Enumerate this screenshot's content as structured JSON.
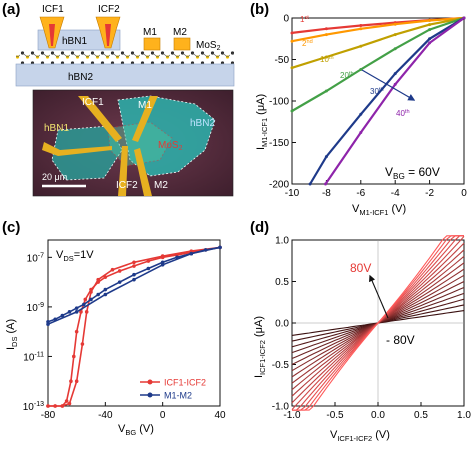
{
  "panels": {
    "a": {
      "label": "(a)",
      "schematic": {
        "contacts": [
          "ICF1",
          "ICF2",
          "M1",
          "M2"
        ],
        "layers": [
          "hBN1",
          "MoS",
          "hBN2"
        ],
        "mos_sub": "2"
      },
      "micrograph": {
        "labels": [
          "ICF1",
          "M1",
          "hBN1",
          "hBN2",
          "MoS",
          "ICF2",
          "M2"
        ],
        "mos_sub": "2",
        "scale_bar": "20 μm"
      }
    },
    "b": {
      "label": "(b)"
    },
    "c": {
      "label": "(c)"
    },
    "d": {
      "label": "(d)"
    }
  },
  "chart_data": [
    {
      "panel": "b",
      "type": "line",
      "xlabel": "V",
      "xlabel_sub": "M1-ICF1",
      "xlabel_unit": " (V)",
      "ylabel": "I",
      "ylabel_sub": "M1-ICF1",
      "ylabel_unit": " (μA)",
      "xlim": [
        -10,
        0
      ],
      "ylim": [
        -200,
        0
      ],
      "xticks": [
        -10,
        -8,
        -6,
        -4,
        -2,
        0
      ],
      "yticks": [
        0,
        -50,
        -100,
        -150,
        -200
      ],
      "annotation": {
        "main": "V",
        "sub": "BG",
        "rest": " = 60V"
      },
      "arrow_label": "40",
      "arrow_label_sup": "th",
      "series": [
        {
          "label": "1",
          "label_sup": "st",
          "color": "#e53935",
          "x": [
            -10,
            -8,
            -6,
            -4,
            -2,
            0
          ],
          "y": [
            -18,
            -13,
            -9,
            -5.5,
            -2.5,
            0
          ]
        },
        {
          "label": "2",
          "label_sup": "nd",
          "color": "#ff9800",
          "x": [
            -10,
            -8,
            -6,
            -4,
            -2,
            0
          ],
          "y": [
            -28,
            -20,
            -13,
            -7.5,
            -3,
            0
          ]
        },
        {
          "label": "10",
          "label_sup": "th",
          "color": "#c0a000",
          "x": [
            -10,
            -8,
            -6,
            -4,
            -2,
            0
          ],
          "y": [
            -60,
            -47,
            -34,
            -20,
            -8,
            0
          ]
        },
        {
          "label": "20",
          "label_sup": "th",
          "color": "#43a047",
          "x": [
            -10,
            -8,
            -6,
            -4,
            -2,
            0
          ],
          "y": [
            -112,
            -88,
            -62,
            -37,
            -14,
            0
          ]
        },
        {
          "label": "30",
          "label_sup": "th",
          "color": "#1e3a8a",
          "x": [
            -8.95,
            -8,
            -6,
            -4,
            -2,
            0
          ],
          "y": [
            -200,
            -167,
            -116,
            -67,
            -25,
            0
          ]
        },
        {
          "label": "",
          "label_sup": "",
          "color": "#8e24aa",
          "x": [
            -8.05,
            -6,
            -4,
            -2,
            0
          ],
          "y": [
            -200,
            -138,
            -80,
            -30,
            0
          ]
        }
      ]
    },
    {
      "panel": "c",
      "type": "line",
      "xlabel": "V",
      "xlabel_sub": "BG",
      "xlabel_unit": " (V)",
      "ylabel": "I",
      "ylabel_sub": "DS",
      "ylabel_unit": " (A)",
      "xlim": [
        -80,
        40
      ],
      "ylog": true,
      "ylim_exp": [
        -13,
        -6.3
      ],
      "xticks": [
        -80,
        -40,
        0,
        40
      ],
      "yticks_exp": [
        -13,
        -11,
        -9,
        -7
      ],
      "annotation": {
        "main": "V",
        "sub": "DS",
        "rest": "=1V"
      },
      "series": [
        {
          "name": "ICF1-ICF2",
          "color": "#e53935",
          "x": [
            -80,
            -75,
            -70,
            -67,
            -64,
            -62,
            -60,
            -57,
            -54,
            -50,
            -45,
            -40,
            -30,
            -20,
            -10,
            0,
            10,
            20,
            30,
            40
          ],
          "y_exp": [
            -13,
            -13,
            -13,
            -12.8,
            -12,
            -11,
            -10,
            -9.2,
            -8.7,
            -8.3,
            -8.0,
            -7.8,
            -7.55,
            -7.35,
            -7.15,
            -7.0,
            -6.9,
            -6.8,
            -6.7,
            -6.6
          ],
          "x_rev": [
            40,
            20,
            0,
            -20,
            -35,
            -45,
            -50,
            -53,
            -56,
            -60,
            -65,
            -70,
            -75,
            -80
          ],
          "y_rev_exp": [
            -6.6,
            -6.75,
            -6.95,
            -7.2,
            -7.5,
            -7.9,
            -8.4,
            -9.2,
            -10.5,
            -12,
            -12.9,
            -13,
            -13,
            -13
          ]
        },
        {
          "name": "M1-M2",
          "color": "#1e3a8a",
          "x": [
            -80,
            -75,
            -70,
            -65,
            -60,
            -55,
            -50,
            -45,
            -40,
            -30,
            -20,
            -10,
            0,
            10,
            20,
            30,
            40
          ],
          "y_exp": [
            -9.6,
            -9.5,
            -9.35,
            -9.2,
            -9.05,
            -8.9,
            -8.7,
            -8.5,
            -8.3,
            -8.0,
            -7.7,
            -7.45,
            -7.2,
            -7.0,
            -6.85,
            -6.7,
            -6.6
          ],
          "x_rev": [
            40,
            20,
            0,
            -20,
            -40,
            -60,
            -80
          ],
          "y_rev_exp": [
            -6.6,
            -6.85,
            -7.3,
            -7.9,
            -8.5,
            -9.2,
            -9.7
          ]
        }
      ]
    },
    {
      "panel": "d",
      "type": "line",
      "xlabel": "V",
      "xlabel_sub": "ICF1-ICF2",
      "xlabel_unit": " (V)",
      "ylabel": "I",
      "ylabel_sub": "ICF1-ICF2",
      "ylabel_unit": " (μA)",
      "xlim": [
        -1,
        1
      ],
      "ylim": [
        -1,
        1
      ],
      "xticks": [
        -1.0,
        -0.5,
        0.0,
        0.5,
        1.0
      ],
      "yticks": [
        1.0,
        0.5,
        0.0,
        -0.5,
        -1.0
      ],
      "gate_labels": {
        "top": "80V",
        "bottom": "- 80V"
      },
      "family": {
        "vbg_from": -80,
        "vbg_to": 80,
        "count": 17
      }
    }
  ]
}
